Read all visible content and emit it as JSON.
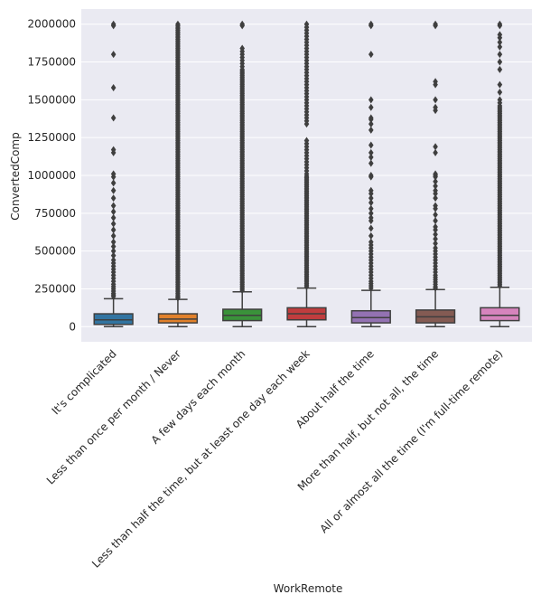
{
  "chart_data": {
    "type": "box",
    "xlabel": "WorkRemote",
    "ylabel": "ConvertedComp",
    "ylim": [
      -100000,
      2100000
    ],
    "yticks": [
      0,
      250000,
      500000,
      750000,
      1000000,
      1250000,
      1500000,
      1750000,
      2000000
    ],
    "ytick_labels": [
      "0",
      "250000",
      "500000",
      "750000",
      "1000000",
      "1250000",
      "1500000",
      "1750000",
      "2000000"
    ],
    "grid": true,
    "background": "#eaeaf2",
    "categories": [
      "It's complicated",
      "Less than once per month / Never",
      "A few days each month",
      "Less than half the time, but at least one day each week",
      "About half the time",
      "More than half, but not all, the time",
      "All or almost all the time (I'm full-time remote)"
    ],
    "boxes": [
      {
        "color": "#3274a1",
        "whisker_low": 0,
        "q1": 15000,
        "median": 45000,
        "q3": 85000,
        "whisker_high": 185000,
        "outliers": [
          200000,
          210000,
          220000,
          235000,
          250000,
          265000,
          280000,
          300000,
          320000,
          340000,
          360000,
          380000,
          400000,
          420000,
          440000,
          470000,
          500000,
          530000,
          560000,
          600000,
          640000,
          680000,
          720000,
          760000,
          800000,
          850000,
          900000,
          950000,
          990000,
          1010000,
          1150000,
          1170000,
          1380000,
          1580000,
          1800000,
          1990000,
          2000000
        ]
      },
      {
        "color": "#e1812c",
        "whisker_low": 0,
        "q1": 25000,
        "median": 50000,
        "q3": 85000,
        "whisker_high": 180000,
        "outliers": [
          190000,
          195000,
          200000,
          210000,
          220000,
          230000,
          240000,
          250000,
          260000,
          270000,
          280000,
          290000,
          300000,
          310000,
          320000,
          330000,
          340000,
          350000,
          360000,
          370000,
          380000,
          390000,
          400000,
          410000,
          420000,
          430000,
          440000,
          450000,
          460000,
          470000,
          480000,
          490000,
          500000,
          510000,
          520000,
          530000,
          540000,
          550000,
          560000,
          570000,
          580000,
          590000,
          600000,
          610000,
          620000,
          630000,
          640000,
          650000,
          660000,
          670000,
          680000,
          690000,
          700000,
          710000,
          720000,
          730000,
          740000,
          750000,
          760000,
          770000,
          780000,
          790000,
          800000,
          810000,
          820000,
          830000,
          840000,
          850000,
          860000,
          870000,
          880000,
          890000,
          900000,
          910000,
          920000,
          930000,
          940000,
          950000,
          960000,
          970000,
          980000,
          990000,
          1000000,
          1010000,
          1020000,
          1030000,
          1040000,
          1050000,
          1060000,
          1070000,
          1080000,
          1090000,
          1100000,
          1110000,
          1120000,
          1130000,
          1140000,
          1150000,
          1160000,
          1170000,
          1180000,
          1190000,
          1200000,
          1210000,
          1220000,
          1230000,
          1240000,
          1250000,
          1260000,
          1270000,
          1280000,
          1290000,
          1300000,
          1310000,
          1320000,
          1330000,
          1340000,
          1350000,
          1360000,
          1370000,
          1380000,
          1390000,
          1400000,
          1410000,
          1420000,
          1430000,
          1440000,
          1450000,
          1460000,
          1470000,
          1480000,
          1490000,
          1500000,
          1510000,
          1520000,
          1530000,
          1540000,
          1550000,
          1560000,
          1570000,
          1580000,
          1590000,
          1600000,
          1610000,
          1620000,
          1630000,
          1640000,
          1650000,
          1660000,
          1670000,
          1680000,
          1690000,
          1700000,
          1710000,
          1720000,
          1730000,
          1740000,
          1750000,
          1760000,
          1770000,
          1780000,
          1790000,
          1800000,
          1810000,
          1820000,
          1830000,
          1840000,
          1850000,
          1860000,
          1870000,
          1880000,
          1890000,
          1900000,
          1910000,
          1920000,
          1930000,
          1940000,
          1950000,
          1960000,
          1970000,
          1980000,
          1990000,
          2000000
        ]
      },
      {
        "color": "#3a923a",
        "whisker_low": 0,
        "q1": 40000,
        "median": 75000,
        "q3": 115000,
        "whisker_high": 230000,
        "outliers": [
          240000,
          250000,
          260000,
          270000,
          280000,
          290000,
          300000,
          310000,
          320000,
          330000,
          340000,
          350000,
          360000,
          370000,
          380000,
          390000,
          400000,
          410000,
          420000,
          430000,
          440000,
          450000,
          460000,
          470000,
          480000,
          490000,
          500000,
          510000,
          520000,
          530000,
          540000,
          550000,
          560000,
          570000,
          580000,
          590000,
          600000,
          610000,
          620000,
          630000,
          640000,
          650000,
          660000,
          670000,
          680000,
          690000,
          700000,
          710000,
          720000,
          730000,
          740000,
          750000,
          760000,
          770000,
          780000,
          790000,
          800000,
          810000,
          820000,
          830000,
          840000,
          850000,
          860000,
          870000,
          880000,
          890000,
          900000,
          910000,
          920000,
          930000,
          940000,
          950000,
          960000,
          970000,
          980000,
          990000,
          1000000,
          1010000,
          1020000,
          1030000,
          1040000,
          1050000,
          1060000,
          1070000,
          1080000,
          1090000,
          1100000,
          1110000,
          1120000,
          1130000,
          1140000,
          1150000,
          1160000,
          1170000,
          1180000,
          1190000,
          1200000,
          1210000,
          1220000,
          1230000,
          1240000,
          1250000,
          1260000,
          1270000,
          1280000,
          1290000,
          1300000,
          1310000,
          1320000,
          1330000,
          1340000,
          1350000,
          1360000,
          1370000,
          1380000,
          1390000,
          1400000,
          1410000,
          1420000,
          1430000,
          1440000,
          1450000,
          1460000,
          1470000,
          1480000,
          1490000,
          1500000,
          1510000,
          1520000,
          1530000,
          1540000,
          1550000,
          1560000,
          1570000,
          1580000,
          1590000,
          1600000,
          1610000,
          1620000,
          1630000,
          1640000,
          1650000,
          1660000,
          1670000,
          1680000,
          1690000,
          1700000,
          1720000,
          1740000,
          1760000,
          1780000,
          1800000,
          1820000,
          1840000,
          1990000,
          2000000
        ]
      },
      {
        "color": "#c03d3e",
        "whisker_low": 0,
        "q1": 45000,
        "median": 85000,
        "q3": 125000,
        "whisker_high": 255000,
        "outliers": [
          265000,
          275000,
          285000,
          295000,
          305000,
          315000,
          325000,
          335000,
          345000,
          355000,
          365000,
          375000,
          385000,
          395000,
          405000,
          415000,
          425000,
          435000,
          445000,
          455000,
          465000,
          475000,
          485000,
          495000,
          505000,
          515000,
          525000,
          535000,
          545000,
          555000,
          565000,
          575000,
          585000,
          595000,
          605000,
          615000,
          625000,
          635000,
          645000,
          655000,
          665000,
          675000,
          685000,
          695000,
          705000,
          715000,
          725000,
          735000,
          745000,
          755000,
          765000,
          775000,
          785000,
          795000,
          805000,
          815000,
          825000,
          835000,
          845000,
          855000,
          865000,
          875000,
          885000,
          895000,
          905000,
          915000,
          925000,
          935000,
          945000,
          955000,
          965000,
          975000,
          985000,
          995000,
          1010000,
          1030000,
          1050000,
          1070000,
          1090000,
          1110000,
          1130000,
          1150000,
          1170000,
          1190000,
          1210000,
          1230000,
          1340000,
          1360000,
          1380000,
          1400000,
          1420000,
          1440000,
          1460000,
          1480000,
          1500000,
          1520000,
          1540000,
          1560000,
          1580000,
          1600000,
          1620000,
          1640000,
          1660000,
          1680000,
          1700000,
          1720000,
          1740000,
          1760000,
          1780000,
          1800000,
          1820000,
          1840000,
          1860000,
          1880000,
          1900000,
          1920000,
          1940000,
          1960000,
          1980000,
          2000000
        ]
      },
      {
        "color": "#9372b2",
        "whisker_low": 0,
        "q1": 25000,
        "median": 60000,
        "q3": 105000,
        "whisker_high": 240000,
        "outliers": [
          255000,
          270000,
          285000,
          300000,
          320000,
          340000,
          360000,
          380000,
          400000,
          420000,
          440000,
          460000,
          480000,
          500000,
          520000,
          540000,
          560000,
          600000,
          650000,
          700000,
          720000,
          750000,
          780000,
          820000,
          850000,
          880000,
          900000,
          990000,
          1000000,
          1080000,
          1120000,
          1150000,
          1200000,
          1300000,
          1340000,
          1370000,
          1380000,
          1450000,
          1500000,
          1800000,
          1990000,
          2000000
        ]
      },
      {
        "color": "#845b53",
        "whisker_low": 0,
        "q1": 25000,
        "median": 65000,
        "q3": 110000,
        "whisker_high": 245000,
        "outliers": [
          255000,
          265000,
          280000,
          295000,
          310000,
          325000,
          340000,
          360000,
          380000,
          400000,
          420000,
          440000,
          460000,
          480000,
          500000,
          520000,
          550000,
          580000,
          610000,
          640000,
          660000,
          700000,
          740000,
          780000,
          800000,
          850000,
          880000,
          900000,
          930000,
          960000,
          990000,
          1000000,
          1010000,
          1150000,
          1190000,
          1430000,
          1450000,
          1500000,
          1600000,
          1620000,
          1990000,
          2000000
        ]
      },
      {
        "color": "#d684bd",
        "whisker_low": 0,
        "q1": 40000,
        "median": 75000,
        "q3": 125000,
        "whisker_high": 260000,
        "outliers": [
          270000,
          280000,
          290000,
          300000,
          310000,
          320000,
          330000,
          340000,
          350000,
          360000,
          370000,
          380000,
          390000,
          400000,
          410000,
          420000,
          430000,
          440000,
          450000,
          460000,
          470000,
          480000,
          490000,
          500000,
          510000,
          520000,
          530000,
          540000,
          550000,
          560000,
          570000,
          580000,
          590000,
          600000,
          610000,
          620000,
          630000,
          640000,
          650000,
          660000,
          670000,
          680000,
          690000,
          700000,
          710000,
          720000,
          730000,
          740000,
          750000,
          760000,
          770000,
          780000,
          790000,
          800000,
          810000,
          820000,
          830000,
          840000,
          850000,
          860000,
          870000,
          880000,
          890000,
          900000,
          910000,
          920000,
          930000,
          940000,
          950000,
          960000,
          970000,
          980000,
          990000,
          1000000,
          1010000,
          1020000,
          1030000,
          1040000,
          1050000,
          1060000,
          1070000,
          1080000,
          1090000,
          1100000,
          1110000,
          1120000,
          1130000,
          1140000,
          1150000,
          1160000,
          1170000,
          1180000,
          1190000,
          1200000,
          1210000,
          1220000,
          1230000,
          1240000,
          1250000,
          1260000,
          1270000,
          1280000,
          1290000,
          1300000,
          1310000,
          1320000,
          1330000,
          1340000,
          1350000,
          1360000,
          1370000,
          1380000,
          1390000,
          1400000,
          1410000,
          1420000,
          1430000,
          1440000,
          1450000,
          1460000,
          1480000,
          1500000,
          1550000,
          1600000,
          1700000,
          1750000,
          1800000,
          1850000,
          1880000,
          1910000,
          1930000,
          1990000,
          2000000
        ]
      }
    ]
  }
}
